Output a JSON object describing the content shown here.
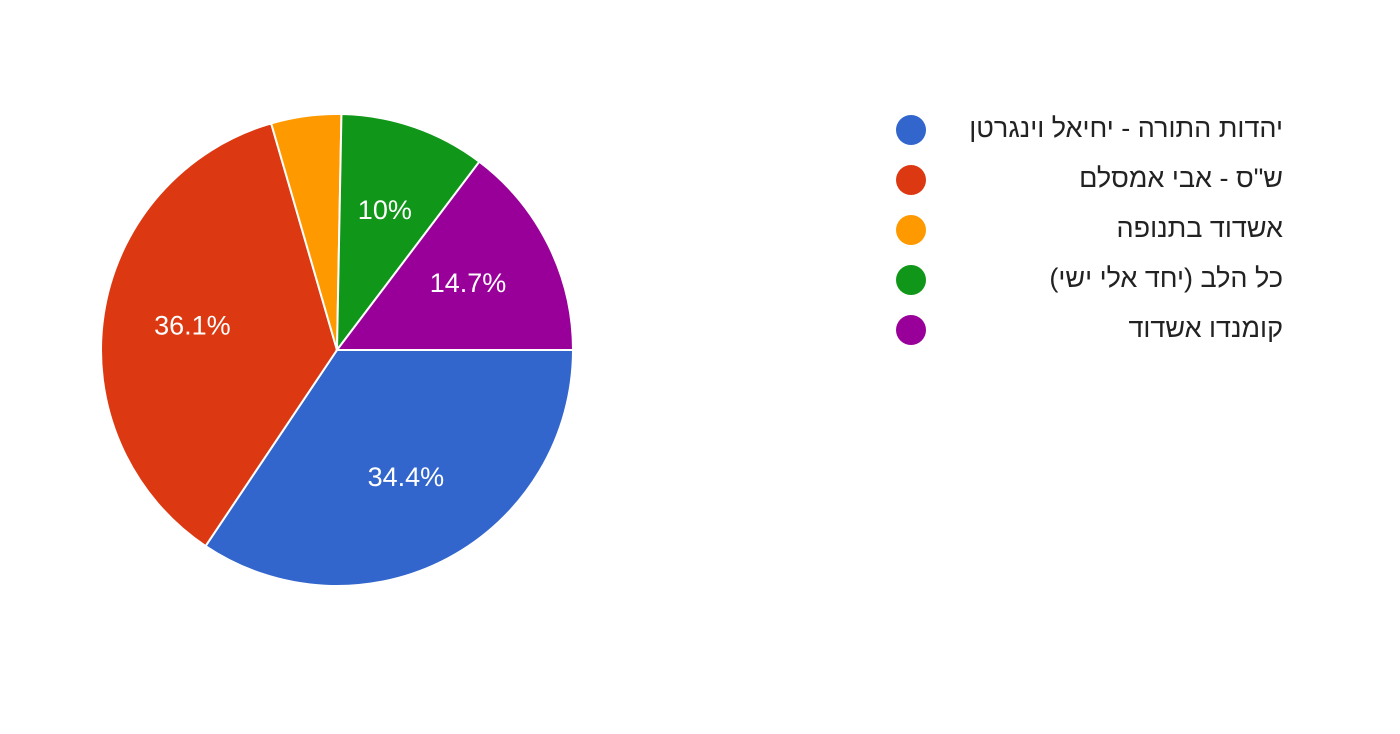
{
  "chart_data": {
    "type": "pie",
    "title": "",
    "series": [
      {
        "categories": [
          "יהדות התורה - יחיאל וינגרטן",
          "ש\"ס - אבי אמסלם",
          "אשדוד בתנופה",
          "כל הלב (יחד אלי ישי)",
          "קומנדו אשדוד"
        ],
        "values": [
          34.4,
          36.1,
          4.8,
          10.0,
          14.7
        ],
        "labels": [
          "34.4%",
          "36.1%",
          "",
          "10%",
          "14.7%"
        ],
        "colors": [
          "#3366cc",
          "#dc3912",
          "#ff9900",
          "#109618",
          "#990099"
        ]
      }
    ],
    "legend": "right",
    "start_angle": "3 o'clock",
    "direction": "clockwise"
  }
}
